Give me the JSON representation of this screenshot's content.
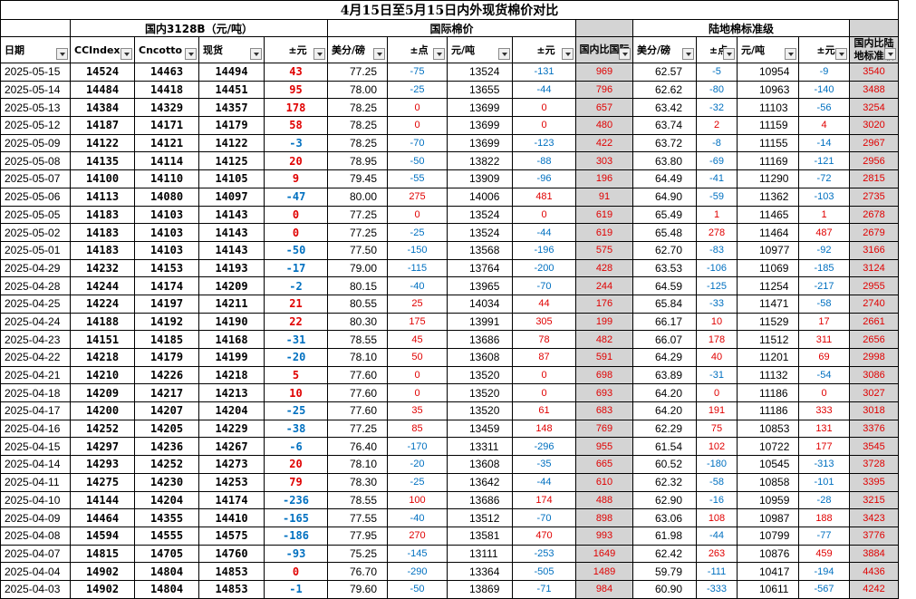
{
  "title": "4月15日至5月15日内外现货棉价对比",
  "groups": {
    "domestic": "国内3128B（元/吨）",
    "international": "国际棉价",
    "land": "陆地棉标准级"
  },
  "headers": [
    "日期",
    "CCIndex",
    "Cncotto",
    "现货",
    "±元",
    "美分/磅",
    "±点",
    "元/吨",
    "±元",
    "国内比国际",
    "美分/磅",
    "±点",
    "元/吨",
    "±元",
    "国内比陆地标准级"
  ],
  "rows": [
    [
      "2025-05-15",
      "14524",
      "14463",
      "14494",
      "43",
      "77.25",
      "-75",
      "13524",
      "-131",
      "969",
      "62.57",
      "-5",
      "10954",
      "-9",
      "3540"
    ],
    [
      "2025-05-14",
      "14484",
      "14418",
      "14451",
      "95",
      "78.00",
      "-25",
      "13655",
      "-44",
      "796",
      "62.62",
      "-80",
      "10963",
      "-140",
      "3488"
    ],
    [
      "2025-05-13",
      "14384",
      "14329",
      "14357",
      "178",
      "78.25",
      "0",
      "13699",
      "0",
      "657",
      "63.42",
      "-32",
      "11103",
      "-56",
      "3254"
    ],
    [
      "2025-05-12",
      "14187",
      "14171",
      "14179",
      "58",
      "78.25",
      "0",
      "13699",
      "0",
      "480",
      "63.74",
      "2",
      "11159",
      "4",
      "3020"
    ],
    [
      "2025-05-09",
      "14122",
      "14121",
      "14122",
      "-3",
      "78.25",
      "-70",
      "13699",
      "-123",
      "422",
      "63.72",
      "-8",
      "11155",
      "-14",
      "2967"
    ],
    [
      "2025-05-08",
      "14135",
      "14114",
      "14125",
      "20",
      "78.95",
      "-50",
      "13822",
      "-88",
      "303",
      "63.80",
      "-69",
      "11169",
      "-121",
      "2956"
    ],
    [
      "2025-05-07",
      "14100",
      "14110",
      "14105",
      "9",
      "79.45",
      "-55",
      "13909",
      "-96",
      "196",
      "64.49",
      "-41",
      "11290",
      "-72",
      "2815"
    ],
    [
      "2025-05-06",
      "14113",
      "14080",
      "14097",
      "-47",
      "80.00",
      "275",
      "14006",
      "481",
      "91",
      "64.90",
      "-59",
      "11362",
      "-103",
      "2735"
    ],
    [
      "2025-05-05",
      "14183",
      "14103",
      "14143",
      "0",
      "77.25",
      "0",
      "13524",
      "0",
      "619",
      "65.49",
      "1",
      "11465",
      "1",
      "2678"
    ],
    [
      "2025-05-02",
      "14183",
      "14103",
      "14143",
      "0",
      "77.25",
      "-25",
      "13524",
      "-44",
      "619",
      "65.48",
      "278",
      "11464",
      "487",
      "2679"
    ],
    [
      "2025-05-01",
      "14183",
      "14103",
      "14143",
      "-50",
      "77.50",
      "-150",
      "13568",
      "-196",
      "575",
      "62.70",
      "-83",
      "10977",
      "-92",
      "3166"
    ],
    [
      "2025-04-29",
      "14232",
      "14153",
      "14193",
      "-17",
      "79.00",
      "-115",
      "13764",
      "-200",
      "428",
      "63.53",
      "-106",
      "11069",
      "-185",
      "3124"
    ],
    [
      "2025-04-28",
      "14244",
      "14174",
      "14209",
      "-2",
      "80.15",
      "-40",
      "13965",
      "-70",
      "244",
      "64.59",
      "-125",
      "11254",
      "-217",
      "2955"
    ],
    [
      "2025-04-25",
      "14224",
      "14197",
      "14211",
      "21",
      "80.55",
      "25",
      "14034",
      "44",
      "176",
      "65.84",
      "-33",
      "11471",
      "-58",
      "2740"
    ],
    [
      "2025-04-24",
      "14188",
      "14192",
      "14190",
      "22",
      "80.30",
      "175",
      "13991",
      "305",
      "199",
      "66.17",
      "10",
      "11529",
      "17",
      "2661"
    ],
    [
      "2025-04-23",
      "14151",
      "14185",
      "14168",
      "-31",
      "78.55",
      "45",
      "13686",
      "78",
      "482",
      "66.07",
      "178",
      "11512",
      "311",
      "2656"
    ],
    [
      "2025-04-22",
      "14218",
      "14179",
      "14199",
      "-20",
      "78.10",
      "50",
      "13608",
      "87",
      "591",
      "64.29",
      "40",
      "11201",
      "69",
      "2998"
    ],
    [
      "2025-04-21",
      "14210",
      "14226",
      "14218",
      "5",
      "77.60",
      "0",
      "13520",
      "0",
      "698",
      "63.89",
      "-31",
      "11132",
      "-54",
      "3086"
    ],
    [
      "2025-04-18",
      "14209",
      "14217",
      "14213",
      "10",
      "77.60",
      "0",
      "13520",
      "0",
      "693",
      "64.20",
      "0",
      "11186",
      "0",
      "3027"
    ],
    [
      "2025-04-17",
      "14200",
      "14207",
      "14204",
      "-25",
      "77.60",
      "35",
      "13520",
      "61",
      "683",
      "64.20",
      "191",
      "11186",
      "333",
      "3018"
    ],
    [
      "2025-04-16",
      "14252",
      "14205",
      "14229",
      "-38",
      "77.25",
      "85",
      "13459",
      "148",
      "769",
      "62.29",
      "75",
      "10853",
      "131",
      "3376"
    ],
    [
      "2025-04-15",
      "14297",
      "14236",
      "14267",
      "-6",
      "76.40",
      "-170",
      "13311",
      "-296",
      "955",
      "61.54",
      "102",
      "10722",
      "177",
      "3545"
    ],
    [
      "2025-04-14",
      "14293",
      "14252",
      "14273",
      "20",
      "78.10",
      "-20",
      "13608",
      "-35",
      "665",
      "60.52",
      "-180",
      "10545",
      "-313",
      "3728"
    ],
    [
      "2025-04-11",
      "14275",
      "14230",
      "14253",
      "79",
      "78.30",
      "-25",
      "13642",
      "-44",
      "610",
      "62.32",
      "-58",
      "10858",
      "-101",
      "3395"
    ],
    [
      "2025-04-10",
      "14144",
      "14204",
      "14174",
      "-236",
      "78.55",
      "100",
      "13686",
      "174",
      "488",
      "62.90",
      "-16",
      "10959",
      "-28",
      "3215"
    ],
    [
      "2025-04-09",
      "14464",
      "14355",
      "14410",
      "-165",
      "77.55",
      "-40",
      "13512",
      "-70",
      "898",
      "63.06",
      "108",
      "10987",
      "188",
      "3423"
    ],
    [
      "2025-04-08",
      "14594",
      "14555",
      "14575",
      "-186",
      "77.95",
      "270",
      "13581",
      "470",
      "993",
      "61.98",
      "-44",
      "10799",
      "-77",
      "3776"
    ],
    [
      "2025-04-07",
      "14815",
      "14705",
      "14760",
      "-93",
      "75.25",
      "-145",
      "13111",
      "-253",
      "1649",
      "62.42",
      "263",
      "10876",
      "459",
      "3884"
    ],
    [
      "2025-04-04",
      "14902",
      "14804",
      "14853",
      "0",
      "76.70",
      "-290",
      "13364",
      "-505",
      "1489",
      "59.79",
      "-111",
      "10417",
      "-194",
      "4436"
    ],
    [
      "2025-04-03",
      "14902",
      "14804",
      "14853",
      "-1",
      "79.60",
      "-50",
      "13869",
      "-71",
      "984",
      "60.90",
      "-333",
      "10611",
      "-567",
      "4242"
    ]
  ],
  "colors": {
    "positive": "#e00000",
    "negative": "#0070c0",
    "gray_fill": "#d4d4d4"
  }
}
